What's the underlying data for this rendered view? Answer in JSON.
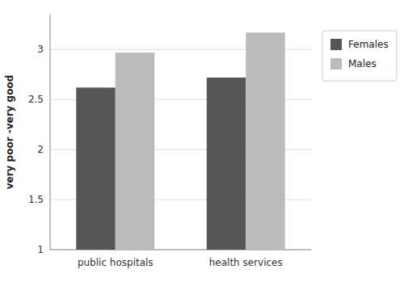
{
  "chart_data": {
    "type": "bar",
    "ylabel": "very poor -very good",
    "categories": [
      "public hospitals",
      "health services"
    ],
    "series": [
      {
        "name": "Females",
        "color": "#555555",
        "values": [
          2.62,
          2.72
        ]
      },
      {
        "name": "Males",
        "color": "#bbbbbb",
        "values": [
          2.97,
          3.17
        ]
      }
    ],
    "ylim": [
      1.0,
      3.35
    ],
    "yticks": [
      1,
      1.5,
      2,
      2.5,
      3
    ],
    "grid": true,
    "legend": "right"
  }
}
